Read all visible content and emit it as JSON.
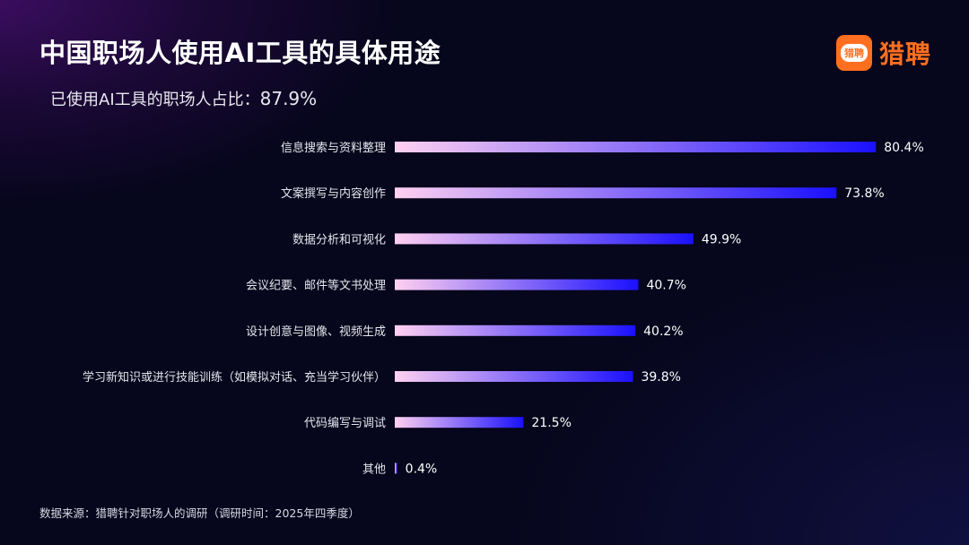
{
  "title": "中国职场人使用AI工具的具体用途",
  "subtitle": {
    "label": "已使用AI工具的职场人占比：",
    "value": "87.9%"
  },
  "brand": {
    "name": "猎聘",
    "icon_text": "猎聘",
    "icon": "liepin-logo-icon",
    "color": "#ff6f1f"
  },
  "chart_data": {
    "type": "bar",
    "orientation": "horizontal",
    "categories": [
      "信息搜索与资料整理",
      "文案撰写与内容创作",
      "数据分析和可视化",
      "会议纪要、邮件等文书处理",
      "设计创意与图像、视频生成",
      "学习新知识或进行技能训练（如模拟对话、充当学习伙伴）",
      "代码编写与调试",
      "其他"
    ],
    "values": [
      80.4,
      73.8,
      49.9,
      40.7,
      40.2,
      39.8,
      21.5,
      0.4
    ],
    "value_labels": [
      "80.4%",
      "73.8%",
      "49.9%",
      "40.7%",
      "40.2%",
      "39.8%",
      "21.5%",
      "0.4%"
    ],
    "unit": "%",
    "xlim": [
      0,
      100
    ],
    "grid": false,
    "bar_gradient": [
      "#ffd0f0",
      "#1a10ff"
    ]
  },
  "source": "数据来源：猎聘针对职场人的调研（调研时间：2025年四季度）"
}
